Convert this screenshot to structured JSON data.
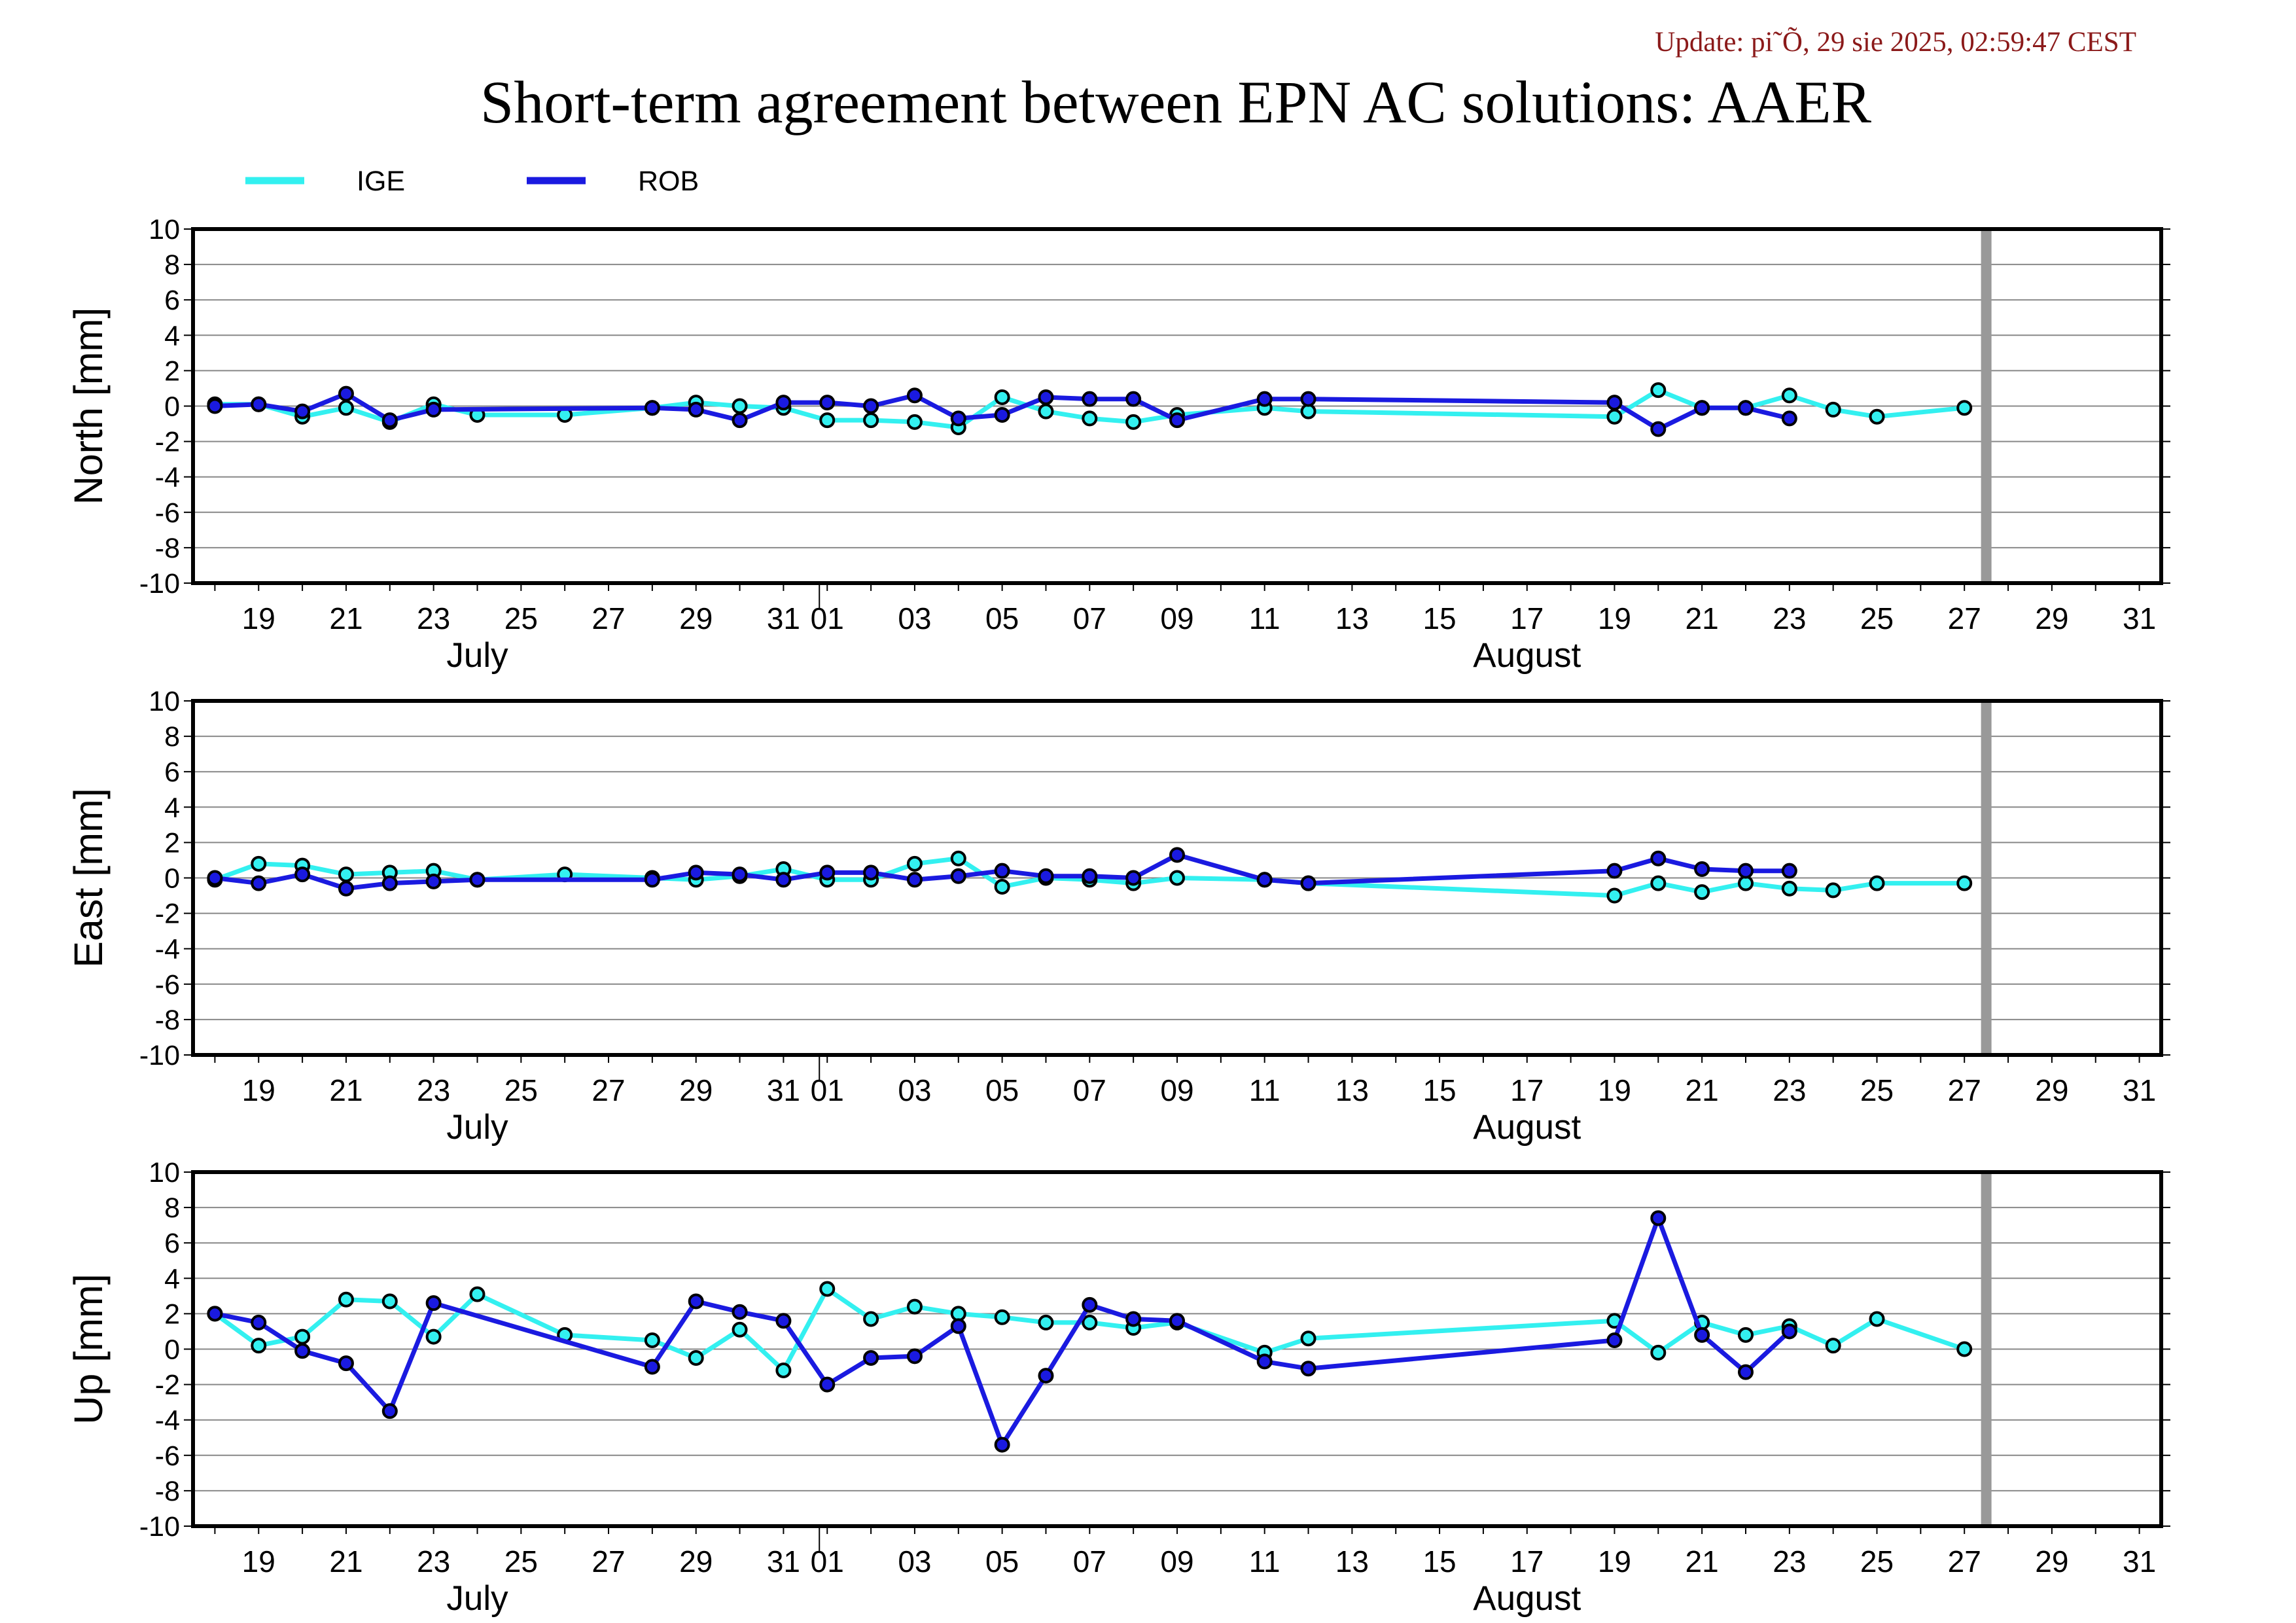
{
  "header": {
    "update": "Update: pi˜Õ, 29 sie 2025, 02:59:47 CEST",
    "title": "Short-term agreement between EPN AC solutions: AAER"
  },
  "colors": {
    "ige": "#33f0f0",
    "rob": "#1a1ae0",
    "update": "#8b1a1a",
    "marker_gray": "#999999",
    "grid": "#888888"
  },
  "chart_data": [
    {
      "type": "line",
      "ylabel": "North [mm]",
      "ylim": [
        -10,
        10
      ],
      "yticks": [
        10,
        8,
        6,
        4,
        2,
        0,
        -2,
        -4,
        -6,
        -8,
        -10
      ],
      "xlim": [
        "2025-07-17.5",
        "2025-08-31.5"
      ],
      "xticks": [
        "19",
        "21",
        "23",
        "25",
        "27",
        "29",
        "31",
        "01",
        "03",
        "05",
        "07",
        "09",
        "11",
        "13",
        "15",
        "17",
        "19",
        "21",
        "23",
        "25",
        "27",
        "29",
        "31"
      ],
      "months": [
        "July",
        "August"
      ],
      "grid": "horizontal",
      "vertical_marker": "2025-08-27.5",
      "series": [
        {
          "name": "IGE",
          "x": [
            "2025-07-18",
            "2025-07-19",
            "2025-07-20",
            "2025-07-21",
            "2025-07-22",
            "2025-07-23",
            "2025-07-24",
            "2025-07-26",
            "2025-07-28",
            "2025-07-29",
            "2025-07-30",
            "2025-07-31",
            "2025-08-01",
            "2025-08-02",
            "2025-08-03",
            "2025-08-04",
            "2025-08-05",
            "2025-08-06",
            "2025-08-07",
            "2025-08-08",
            "2025-08-09",
            "2025-08-11",
            "2025-08-12",
            "2025-08-19",
            "2025-08-20",
            "2025-08-21",
            "2025-08-22",
            "2025-08-23",
            "2025-08-24",
            "2025-08-25",
            "2025-08-27"
          ],
          "values": [
            0.1,
            0.1,
            -0.6,
            -0.1,
            -0.9,
            0.1,
            -0.5,
            -0.5,
            -0.1,
            0.2,
            0.0,
            -0.1,
            -0.8,
            -0.8,
            -0.9,
            -1.2,
            0.5,
            -0.3,
            -0.7,
            -0.9,
            -0.5,
            -0.1,
            -0.3,
            -0.6,
            0.9,
            -0.1,
            -0.1,
            0.6,
            -0.2,
            -0.6,
            -0.1
          ]
        },
        {
          "name": "ROB",
          "x": [
            "2025-07-18",
            "2025-07-19",
            "2025-07-20",
            "2025-07-21",
            "2025-07-22",
            "2025-07-23",
            "2025-07-28",
            "2025-07-29",
            "2025-07-30",
            "2025-07-31",
            "2025-08-01",
            "2025-08-02",
            "2025-08-03",
            "2025-08-04",
            "2025-08-05",
            "2025-08-06",
            "2025-08-07",
            "2025-08-08",
            "2025-08-09",
            "2025-08-11",
            "2025-08-12",
            "2025-08-19",
            "2025-08-20",
            "2025-08-21",
            "2025-08-22",
            "2025-08-23"
          ],
          "values": [
            0.0,
            0.1,
            -0.3,
            0.7,
            -0.8,
            -0.2,
            -0.1,
            -0.2,
            -0.8,
            0.2,
            0.2,
            0.0,
            0.6,
            -0.7,
            -0.5,
            0.5,
            0.4,
            0.4,
            -0.8,
            0.4,
            0.4,
            0.2,
            -1.3,
            -0.1,
            -0.1,
            -0.7
          ]
        }
      ]
    },
    {
      "type": "line",
      "ylabel": "East [mm]",
      "ylim": [
        -10,
        10
      ],
      "yticks": [
        10,
        8,
        6,
        4,
        2,
        0,
        -2,
        -4,
        -6,
        -8,
        -10
      ],
      "xlim": [
        "2025-07-17.5",
        "2025-08-31.5"
      ],
      "xticks": [
        "19",
        "21",
        "23",
        "25",
        "27",
        "29",
        "31",
        "01",
        "03",
        "05",
        "07",
        "09",
        "11",
        "13",
        "15",
        "17",
        "19",
        "21",
        "23",
        "25",
        "27",
        "29",
        "31"
      ],
      "months": [
        "July",
        "August"
      ],
      "grid": "horizontal",
      "vertical_marker": "2025-08-27.5",
      "series": [
        {
          "name": "IGE",
          "x": [
            "2025-07-18",
            "2025-07-19",
            "2025-07-20",
            "2025-07-21",
            "2025-07-22",
            "2025-07-23",
            "2025-07-24",
            "2025-07-26",
            "2025-07-28",
            "2025-07-29",
            "2025-07-30",
            "2025-07-31",
            "2025-08-01",
            "2025-08-02",
            "2025-08-03",
            "2025-08-04",
            "2025-08-05",
            "2025-08-06",
            "2025-08-07",
            "2025-08-08",
            "2025-08-09",
            "2025-08-11",
            "2025-08-12",
            "2025-08-19",
            "2025-08-20",
            "2025-08-21",
            "2025-08-22",
            "2025-08-23",
            "2025-08-24",
            "2025-08-25",
            "2025-08-27"
          ],
          "values": [
            -0.1,
            0.8,
            0.7,
            0.2,
            0.3,
            0.4,
            -0.1,
            0.2,
            0.0,
            -0.1,
            0.1,
            0.5,
            -0.1,
            -0.1,
            0.8,
            1.1,
            -0.5,
            0.0,
            -0.1,
            -0.3,
            0.0,
            -0.1,
            -0.3,
            -1.0,
            -0.3,
            -0.8,
            -0.3,
            -0.6,
            -0.7,
            -0.3,
            -0.3
          ]
        },
        {
          "name": "ROB",
          "x": [
            "2025-07-18",
            "2025-07-19",
            "2025-07-20",
            "2025-07-21",
            "2025-07-22",
            "2025-07-23",
            "2025-07-24",
            "2025-07-28",
            "2025-07-29",
            "2025-07-30",
            "2025-07-31",
            "2025-08-01",
            "2025-08-02",
            "2025-08-03",
            "2025-08-04",
            "2025-08-05",
            "2025-08-06",
            "2025-08-07",
            "2025-08-08",
            "2025-08-09",
            "2025-08-11",
            "2025-08-12",
            "2025-08-19",
            "2025-08-20",
            "2025-08-21",
            "2025-08-22",
            "2025-08-23"
          ],
          "values": [
            0.0,
            -0.3,
            0.2,
            -0.6,
            -0.3,
            -0.2,
            -0.1,
            -0.1,
            0.3,
            0.2,
            -0.1,
            0.3,
            0.3,
            -0.1,
            0.1,
            0.4,
            0.1,
            0.1,
            0.0,
            1.3,
            -0.1,
            -0.3,
            0.4,
            1.1,
            0.5,
            0.4,
            0.4
          ]
        }
      ]
    },
    {
      "type": "line",
      "ylabel": "Up [mm]",
      "ylim": [
        -10,
        10
      ],
      "yticks": [
        10,
        8,
        6,
        4,
        2,
        0,
        -2,
        -4,
        -6,
        -8,
        -10
      ],
      "xlim": [
        "2025-07-17.5",
        "2025-08-31.5"
      ],
      "xticks": [
        "19",
        "21",
        "23",
        "25",
        "27",
        "29",
        "31",
        "01",
        "03",
        "05",
        "07",
        "09",
        "11",
        "13",
        "15",
        "17",
        "19",
        "21",
        "23",
        "25",
        "27",
        "29",
        "31"
      ],
      "months": [
        "July",
        "August"
      ],
      "grid": "horizontal",
      "vertical_marker": "2025-08-27.5",
      "series": [
        {
          "name": "IGE",
          "x": [
            "2025-07-18",
            "2025-07-19",
            "2025-07-20",
            "2025-07-21",
            "2025-07-22",
            "2025-07-23",
            "2025-07-24",
            "2025-07-26",
            "2025-07-28",
            "2025-07-29",
            "2025-07-30",
            "2025-07-31",
            "2025-08-01",
            "2025-08-02",
            "2025-08-03",
            "2025-08-04",
            "2025-08-05",
            "2025-08-06",
            "2025-08-07",
            "2025-08-08",
            "2025-08-09",
            "2025-08-11",
            "2025-08-12",
            "2025-08-19",
            "2025-08-20",
            "2025-08-21",
            "2025-08-22",
            "2025-08-23",
            "2025-08-24",
            "2025-08-25",
            "2025-08-27"
          ],
          "values": [
            2.0,
            0.2,
            0.7,
            2.8,
            2.7,
            0.7,
            3.1,
            0.8,
            0.5,
            -0.5,
            1.1,
            -1.2,
            3.4,
            1.7,
            2.4,
            2.0,
            1.8,
            1.5,
            1.5,
            1.2,
            1.5,
            -0.2,
            0.6,
            1.6,
            -0.2,
            1.5,
            0.8,
            1.3,
            0.2,
            1.7,
            0.0
          ]
        },
        {
          "name": "ROB",
          "x": [
            "2025-07-18",
            "2025-07-19",
            "2025-07-20",
            "2025-07-21",
            "2025-07-22",
            "2025-07-23",
            "2025-07-28",
            "2025-07-29",
            "2025-07-30",
            "2025-07-31",
            "2025-08-01",
            "2025-08-02",
            "2025-08-03",
            "2025-08-04",
            "2025-08-05",
            "2025-08-06",
            "2025-08-07",
            "2025-08-08",
            "2025-08-09",
            "2025-08-11",
            "2025-08-12",
            "2025-08-19",
            "2025-08-20",
            "2025-08-21",
            "2025-08-22",
            "2025-08-23"
          ],
          "values": [
            2.0,
            1.5,
            -0.1,
            -0.8,
            -3.5,
            2.6,
            -1.0,
            2.7,
            2.1,
            1.6,
            -2.0,
            -0.5,
            -0.4,
            1.3,
            -5.4,
            -1.5,
            2.5,
            1.7,
            1.6,
            -0.7,
            -1.1,
            0.5,
            7.4,
            0.8,
            -1.3,
            1.0
          ]
        }
      ]
    }
  ]
}
